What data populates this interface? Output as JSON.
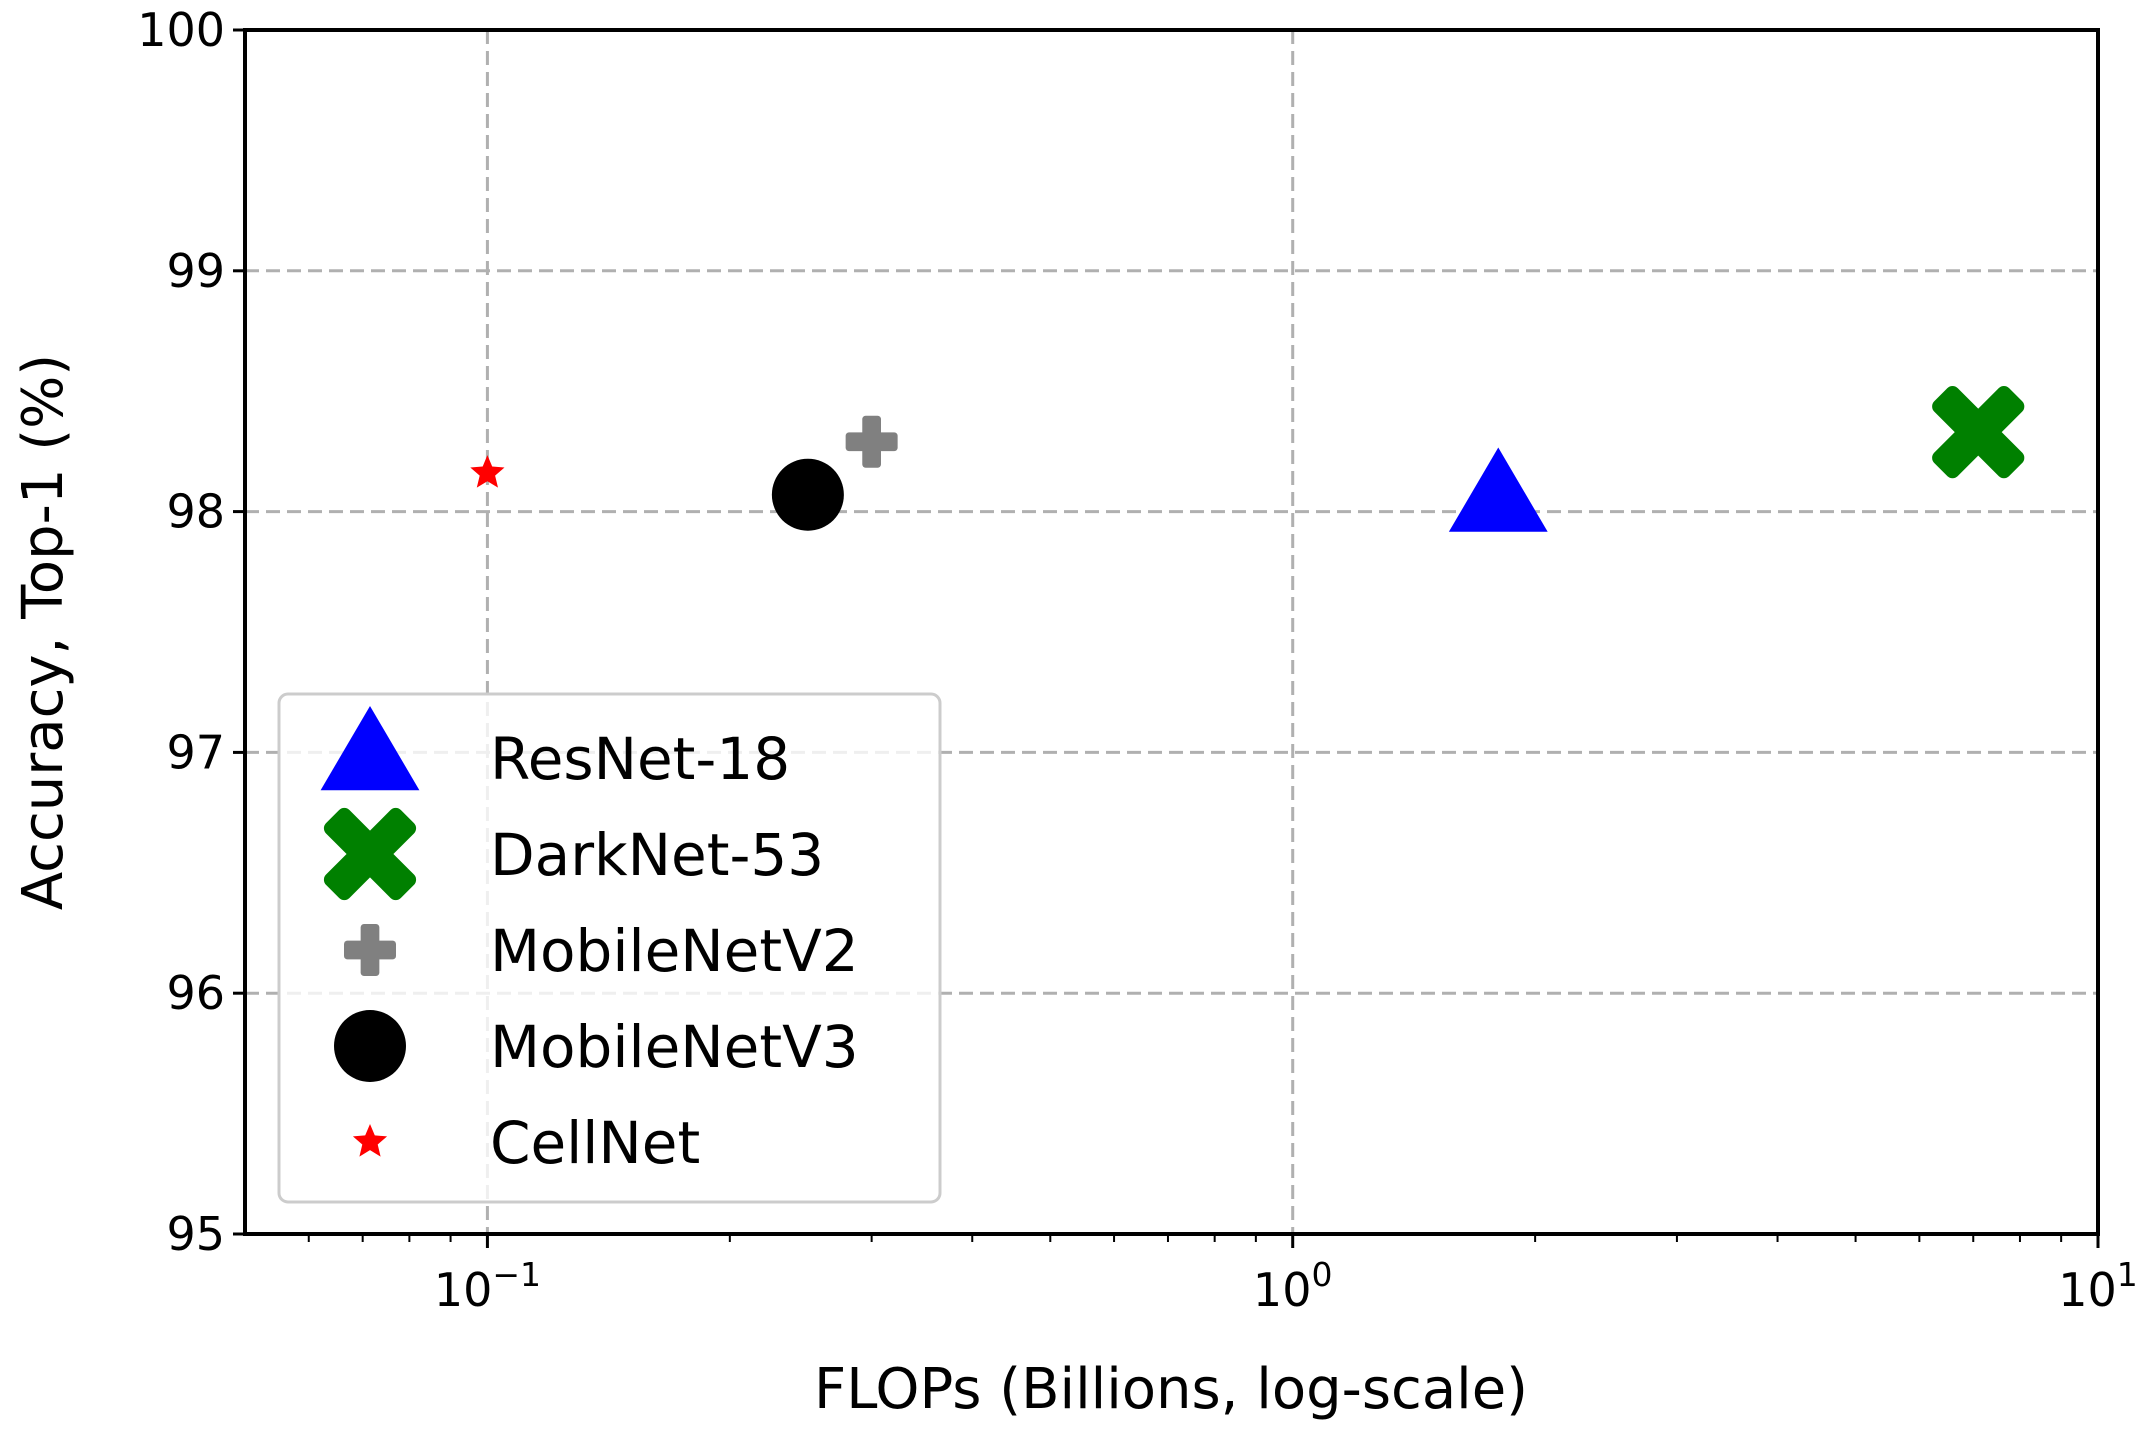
{
  "chart_data": {
    "type": "scatter",
    "title": "",
    "xlabel": "FLOPs (Billions, log-scale)",
    "ylabel": "Accuracy, Top-1 (%)",
    "xscale": "log",
    "xlim": [
      0.05,
      10
    ],
    "ylim": [
      95,
      100
    ],
    "grid": true,
    "legend_position": "lower-left",
    "x_ticks": [
      {
        "value": 0.1,
        "base": "10",
        "exp": "−1"
      },
      {
        "value": 1,
        "base": "10",
        "exp": "0"
      },
      {
        "value": 10,
        "base": "10",
        "exp": "1"
      }
    ],
    "y_ticks": [
      {
        "value": 95,
        "label": "95"
      },
      {
        "value": 96,
        "label": "96"
      },
      {
        "value": 97,
        "label": "97"
      },
      {
        "value": 98,
        "label": "98"
      },
      {
        "value": 99,
        "label": "99"
      },
      {
        "value": 100,
        "label": "100"
      }
    ],
    "series": [
      {
        "name": "ResNet-18",
        "marker": "triangle",
        "color": "#0000ff",
        "x": 1.8,
        "y": 98.05
      },
      {
        "name": "DarkNet-53",
        "marker": "x",
        "color": "#008000",
        "x": 7.1,
        "y": 98.33
      },
      {
        "name": "MobileNetV2",
        "marker": "plus",
        "color": "#808080",
        "x": 0.3,
        "y": 98.29
      },
      {
        "name": "MobileNetV3",
        "marker": "circle",
        "color": "#000000",
        "x": 0.25,
        "y": 98.07
      },
      {
        "name": "CellNet",
        "marker": "star",
        "color": "#ff0000",
        "x": 0.1,
        "y": 98.16
      }
    ]
  }
}
